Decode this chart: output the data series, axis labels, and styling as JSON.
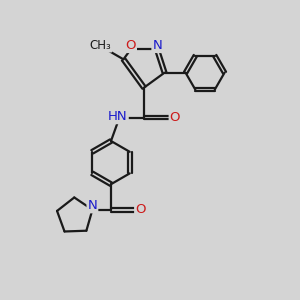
{
  "bg_color": "#d4d4d4",
  "bond_color": "#1a1a1a",
  "bond_width": 1.6,
  "atom_colors": {
    "N": "#1a1acc",
    "O": "#cc1a1a",
    "C": "#1a1a1a"
  },
  "font_size": 9.5
}
